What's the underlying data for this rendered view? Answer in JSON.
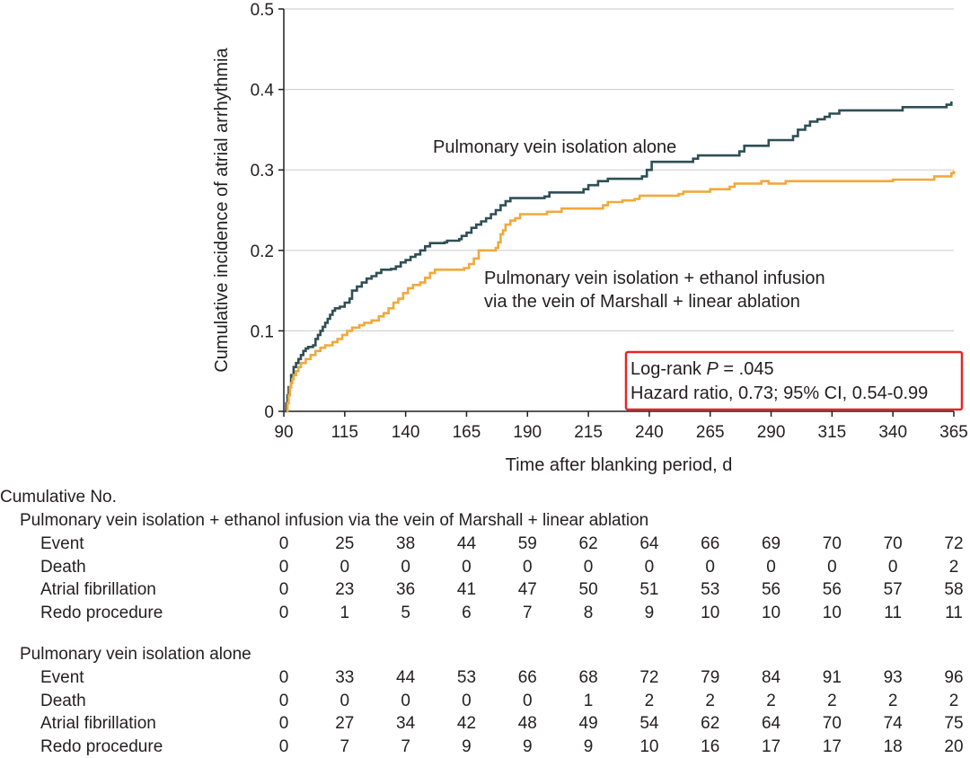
{
  "chart_data": {
    "type": "line",
    "subtype": "kaplan-meier cumulative incidence",
    "xlabel": "Time after blanking period, d",
    "ylabel": "Cumulative incidence of atrial arrhythmia",
    "xlim": [
      90,
      365
    ],
    "ylim": [
      0,
      0.5
    ],
    "x_ticks": [
      90,
      115,
      140,
      165,
      190,
      215,
      240,
      265,
      290,
      315,
      340,
      365
    ],
    "y_ticks": [
      0,
      0.1,
      0.2,
      0.3,
      0.4,
      0.5
    ],
    "y_tick_labels": [
      "0",
      "0.1",
      "0.2",
      "0.3",
      "0.4",
      "0.5"
    ],
    "grid": "horizontal",
    "series": [
      {
        "name": "Pulmonary vein isolation alone",
        "color": "#2f4f54",
        "label_lines": [
          "Pulmonary vein isolation alone"
        ],
        "points": [
          [
            90,
            0
          ],
          [
            91,
            0.01
          ],
          [
            91.5,
            0.02
          ],
          [
            92,
            0.03
          ],
          [
            93,
            0.045
          ],
          [
            94,
            0.055
          ],
          [
            95,
            0.06
          ],
          [
            96,
            0.065
          ],
          [
            97,
            0.07
          ],
          [
            98,
            0.075
          ],
          [
            99,
            0.078
          ],
          [
            100,
            0.08
          ],
          [
            102,
            0.082
          ],
          [
            103,
            0.09
          ],
          [
            104,
            0.095
          ],
          [
            105,
            0.1
          ],
          [
            106,
            0.105
          ],
          [
            107,
            0.11
          ],
          [
            108,
            0.115
          ],
          [
            109,
            0.12
          ],
          [
            110,
            0.125
          ],
          [
            111,
            0.128
          ],
          [
            113,
            0.13
          ],
          [
            115,
            0.135
          ],
          [
            117,
            0.14
          ],
          [
            118,
            0.15
          ],
          [
            120,
            0.155
          ],
          [
            122,
            0.16
          ],
          [
            124,
            0.165
          ],
          [
            126,
            0.168
          ],
          [
            128,
            0.172
          ],
          [
            130,
            0.176
          ],
          [
            134,
            0.177
          ],
          [
            136,
            0.18
          ],
          [
            138,
            0.185
          ],
          [
            140,
            0.188
          ],
          [
            142,
            0.192
          ],
          [
            144,
            0.195
          ],
          [
            146,
            0.2
          ],
          [
            148,
            0.205
          ],
          [
            150,
            0.209
          ],
          [
            156,
            0.21
          ],
          [
            157,
            0.212
          ],
          [
            162,
            0.214
          ],
          [
            163,
            0.218
          ],
          [
            165,
            0.222
          ],
          [
            167,
            0.228
          ],
          [
            169,
            0.232
          ],
          [
            171,
            0.236
          ],
          [
            173,
            0.24
          ],
          [
            175,
            0.245
          ],
          [
            177,
            0.25
          ],
          [
            179,
            0.256
          ],
          [
            181,
            0.261
          ],
          [
            183,
            0.265
          ],
          [
            197,
            0.267
          ],
          [
            199,
            0.272
          ],
          [
            213,
            0.276
          ],
          [
            215,
            0.281
          ],
          [
            219,
            0.286
          ],
          [
            223,
            0.289
          ],
          [
            237,
            0.292
          ],
          [
            239,
            0.3
          ],
          [
            241,
            0.31
          ],
          [
            258,
            0.314
          ],
          [
            260,
            0.318
          ],
          [
            277,
            0.323
          ],
          [
            279,
            0.33
          ],
          [
            289,
            0.337
          ],
          [
            299,
            0.342
          ],
          [
            301,
            0.35
          ],
          [
            304,
            0.355
          ],
          [
            306,
            0.36
          ],
          [
            309,
            0.363
          ],
          [
            312,
            0.366
          ],
          [
            314,
            0.37
          ],
          [
            318,
            0.374
          ],
          [
            344,
            0.378
          ],
          [
            362,
            0.381
          ],
          [
            364,
            0.385
          ]
        ]
      },
      {
        "name": "Pulmonary vein isolation + ethanol infusion via the vein of Marshall + linear ablation",
        "color": "#f0a93b",
        "label_lines": [
          "Pulmonary vein isolation + ethanol infusion",
          "via the vein of Marshall + linear ablation"
        ],
        "points": [
          [
            91,
            0
          ],
          [
            91.5,
            0.01
          ],
          [
            92,
            0.02
          ],
          [
            92.5,
            0.03
          ],
          [
            93,
            0.035
          ],
          [
            93.5,
            0.04
          ],
          [
            94,
            0.045
          ],
          [
            95,
            0.05
          ],
          [
            96,
            0.055
          ],
          [
            97,
            0.06
          ],
          [
            99,
            0.065
          ],
          [
            101,
            0.07
          ],
          [
            103,
            0.075
          ],
          [
            105,
            0.079
          ],
          [
            107,
            0.082
          ],
          [
            110,
            0.086
          ],
          [
            112,
            0.09
          ],
          [
            114,
            0.095
          ],
          [
            116,
            0.1
          ],
          [
            118,
            0.104
          ],
          [
            121,
            0.107
          ],
          [
            123,
            0.11
          ],
          [
            126,
            0.113
          ],
          [
            129,
            0.118
          ],
          [
            131,
            0.122
          ],
          [
            133,
            0.128
          ],
          [
            135,
            0.135
          ],
          [
            137,
            0.14
          ],
          [
            139,
            0.147
          ],
          [
            141,
            0.153
          ],
          [
            143,
            0.157
          ],
          [
            146,
            0.16
          ],
          [
            148,
            0.166
          ],
          [
            150,
            0.172
          ],
          [
            152,
            0.176
          ],
          [
            164,
            0.178
          ],
          [
            166,
            0.183
          ],
          [
            168,
            0.19
          ],
          [
            170,
            0.2
          ],
          [
            177,
            0.203
          ],
          [
            178,
            0.21
          ],
          [
            179,
            0.22
          ],
          [
            180,
            0.225
          ],
          [
            181,
            0.232
          ],
          [
            183,
            0.237
          ],
          [
            185,
            0.24
          ],
          [
            187,
            0.245
          ],
          [
            198,
            0.248
          ],
          [
            204,
            0.252
          ],
          [
            221,
            0.256
          ],
          [
            223,
            0.26
          ],
          [
            229,
            0.262
          ],
          [
            234,
            0.264
          ],
          [
            236,
            0.268
          ],
          [
            252,
            0.27
          ],
          [
            254,
            0.273
          ],
          [
            265,
            0.276
          ],
          [
            273,
            0.279
          ],
          [
            275,
            0.283
          ],
          [
            286,
            0.286
          ],
          [
            289,
            0.283
          ],
          [
            296,
            0.286
          ],
          [
            340,
            0.288
          ],
          [
            357,
            0.292
          ],
          [
            364,
            0.296
          ],
          [
            365,
            0.299
          ]
        ]
      }
    ],
    "annotation_box": {
      "line1_prefix": "Log-rank ",
      "line1_italic": "P",
      "line1_suffix": " = .045",
      "line2": "Hazard ratio, 0.73; 95% CI, 0.54-0.99",
      "border_color": "#e0282a"
    }
  },
  "risk_table": {
    "heading": "Cumulative No.",
    "groups": [
      {
        "name": "Pulmonary vein isolation + ethanol infusion via the vein of Marshall + linear ablation",
        "rows": [
          {
            "label": "Event",
            "values": [
              "0",
              "25",
              "38",
              "44",
              "59",
              "62",
              "64",
              "66",
              "69",
              "70",
              "70",
              "72"
            ]
          },
          {
            "label": "Death",
            "values": [
              "0",
              "0",
              "0",
              "0",
              "0",
              "0",
              "0",
              "0",
              "0",
              "0",
              "0",
              "2"
            ]
          },
          {
            "label": "Atrial fibrillation",
            "values": [
              "0",
              "23",
              "36",
              "41",
              "47",
              "50",
              "51",
              "53",
              "56",
              "56",
              "57",
              "58"
            ]
          },
          {
            "label": "Redo procedure",
            "values": [
              "0",
              "1",
              "5",
              "6",
              "7",
              "8",
              "9",
              "10",
              "10",
              "10",
              "11",
              "11"
            ]
          }
        ]
      },
      {
        "name": "Pulmonary vein isolation alone",
        "rows": [
          {
            "label": "Event",
            "values": [
              "0",
              "33",
              "44",
              "53",
              "66",
              "68",
              "72",
              "79",
              "84",
              "91",
              "93",
              "96"
            ]
          },
          {
            "label": "Death",
            "values": [
              "0",
              "0",
              "0",
              "0",
              "0",
              "1",
              "2",
              "2",
              "2",
              "2",
              "2",
              "2"
            ]
          },
          {
            "label": "Atrial fibrillation",
            "values": [
              "0",
              "27",
              "34",
              "42",
              "48",
              "49",
              "54",
              "62",
              "64",
              "70",
              "74",
              "75"
            ]
          },
          {
            "label": "Redo procedure",
            "values": [
              "0",
              "7",
              "7",
              "9",
              "9",
              "9",
              "10",
              "16",
              "17",
              "17",
              "18",
              "20"
            ]
          }
        ]
      }
    ]
  }
}
